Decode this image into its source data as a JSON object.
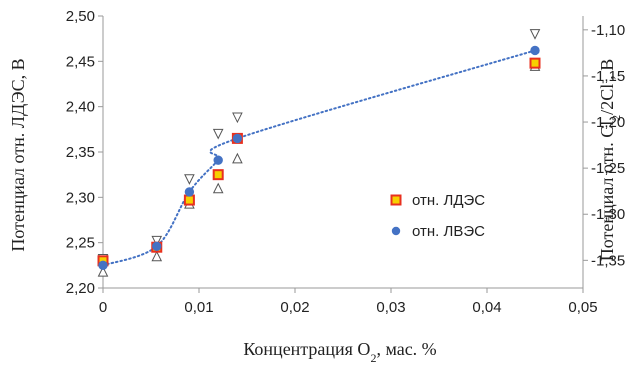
{
  "chart_data": {
    "type": "scatter",
    "xlabel_parts": [
      "Концентрация O",
      "2",
      ", мас. %"
    ],
    "ylabel_left": "Потенциал отн. ЛДЭС, В",
    "ylabel_right_parts": [
      "Потенциал отн. Cl",
      "2",
      "/2Cl",
      "-",
      ", В"
    ],
    "xlim": [
      0,
      0.05
    ],
    "ylim_left": [
      2.2,
      2.5
    ],
    "ylim_right": [
      -1.38,
      -1.085
    ],
    "x_ticks": [
      0,
      0.01,
      0.02,
      0.03,
      0.04,
      0.05
    ],
    "x_tick_labels": [
      "0",
      "0,01",
      "0,02",
      "0,03",
      "0,04",
      "0,05"
    ],
    "y_left_ticks": [
      2.2,
      2.25,
      2.3,
      2.35,
      2.4,
      2.45,
      2.5
    ],
    "y_left_tick_labels": [
      "2,20",
      "2,25",
      "2,30",
      "2,35",
      "2,40",
      "2,45",
      "2,50"
    ],
    "y_right_ticks": [
      -1.35,
      -1.3,
      -1.25,
      -1.2,
      -1.15,
      -1.1
    ],
    "y_right_tick_labels": [
      "-1,35",
      "-1,30",
      "-1,25",
      "-1,20",
      "-1,15",
      "-1,10"
    ],
    "grid": false,
    "legend_position": "right",
    "series": [
      {
        "name": "отн. ЛДЭС",
        "axis": "left",
        "marker": "square",
        "fill": "#F7D000",
        "edge": "#E8301F",
        "x": [
          0,
          0.0056,
          0.009,
          0.012,
          0.014,
          0.045
        ],
        "y": [
          2.23,
          2.245,
          2.297,
          2.325,
          2.365,
          2.448
        ]
      },
      {
        "name": "отн. ЛВЭС",
        "axis": "left",
        "marker": "circle",
        "fill": "#4472C4",
        "x": [
          0,
          0.0056,
          0.009,
          0.012,
          0.014,
          0.045
        ],
        "y": [
          2.225,
          2.246,
          2.306,
          2.341,
          2.365,
          2.462
        ]
      }
    ],
    "error_markers": {
      "x": [
        0,
        0.0056,
        0.009,
        0.012,
        0.014,
        0.045
      ],
      "upper": [
        2.232,
        2.252,
        2.32,
        2.37,
        2.388,
        2.48
      ],
      "lower": [
        2.218,
        2.235,
        2.293,
        2.31,
        2.343,
        2.445
      ],
      "color": "#555555"
    },
    "trendline": {
      "style": "dotted",
      "color": "#4472C4",
      "x": [
        0,
        0.0056,
        0.009,
        0.012,
        0.014,
        0.045
      ],
      "y": [
        2.225,
        2.246,
        2.306,
        2.341,
        2.365,
        2.462
      ]
    }
  }
}
